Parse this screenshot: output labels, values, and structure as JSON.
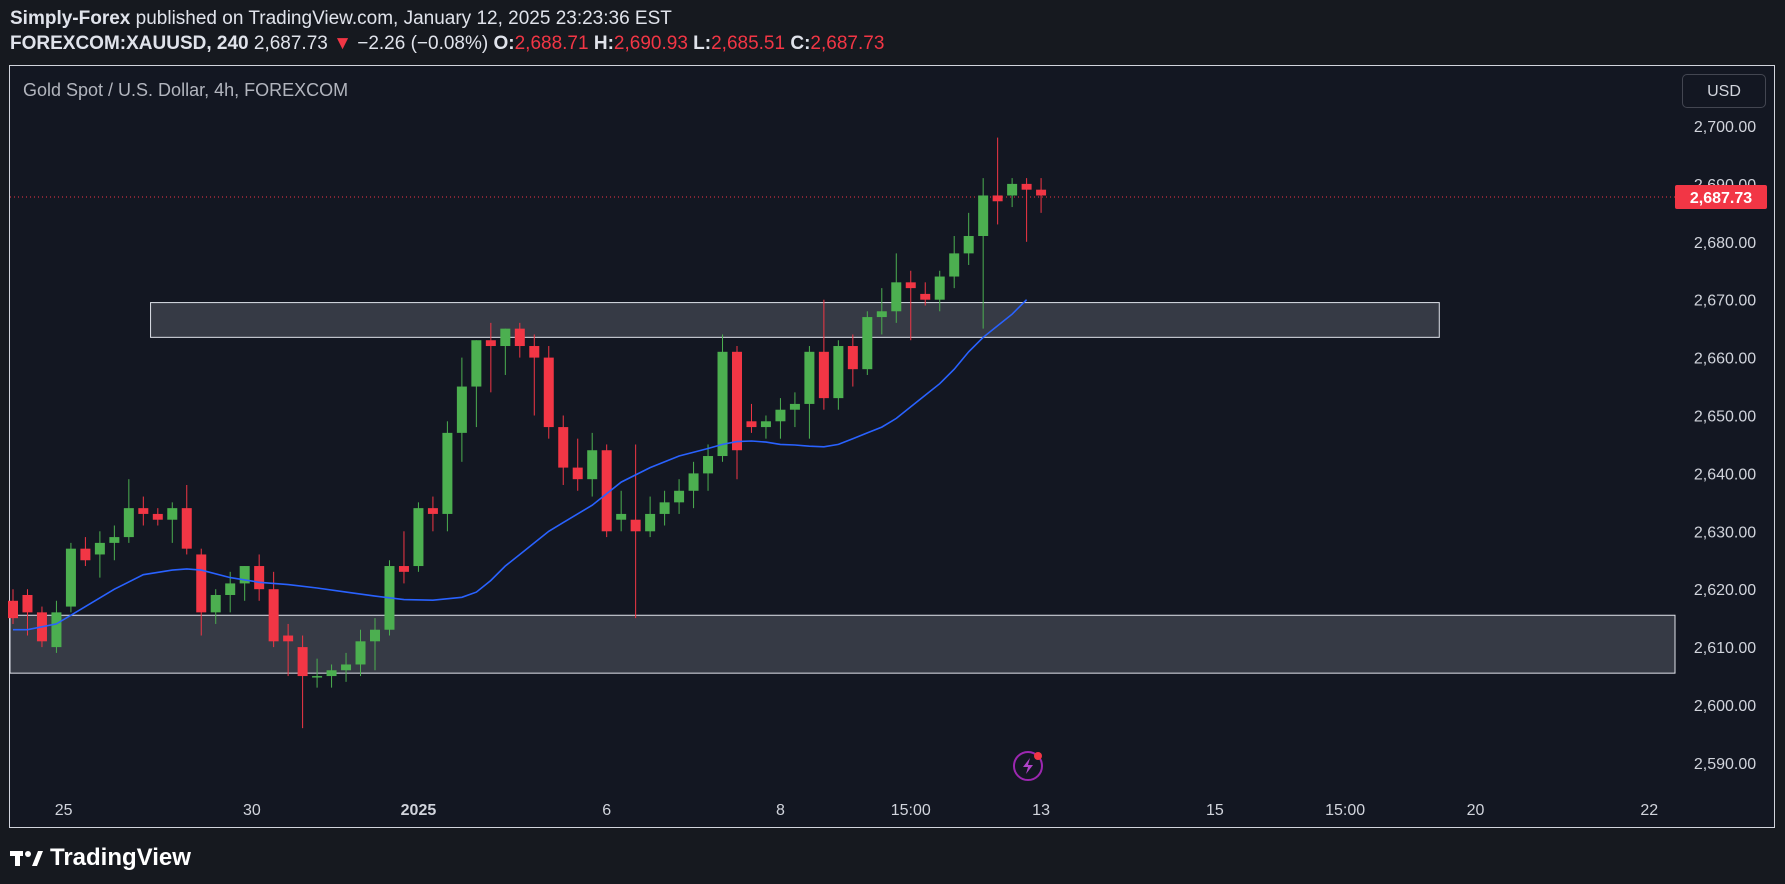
{
  "header": {
    "author": "Simply-Forex",
    "published_text": "published on TradingView.com, January 12, 2025 23:23:36 EST",
    "symbol": "FOREXCOM:XAUUSD, 240",
    "last": "2,687.73",
    "change": "−2.26 (−0.08%)",
    "o_label": "O:",
    "o_value": "2,688.71",
    "h_label": "H:",
    "h_value": "2,690.93",
    "l_label": "L:",
    "l_value": "2,685.51",
    "c_label": "C:",
    "c_value": "2,687.73"
  },
  "chart_title": "Gold Spot / U.S. Dollar, 4h, FOREXCOM",
  "currency_button": "USD",
  "footer": {
    "brand": "TradingView"
  },
  "colors": {
    "up": "#4caf50",
    "down": "#f23645",
    "ma": "#2962ff",
    "background": "#131722"
  },
  "chart_data": {
    "type": "candlestick",
    "title": "Gold Spot / U.S. Dollar, 4h, FOREXCOM",
    "ylim": [
      2581,
      2709
    ],
    "y_ticks": [
      2590,
      2600,
      2610,
      2620,
      2630,
      2640,
      2650,
      2660,
      2670,
      2680,
      2690,
      2700
    ],
    "y_tick_labels": [
      "2,590.00",
      "2,600.00",
      "2,610.00",
      "2,620.00",
      "2,630.00",
      "2,640.00",
      "2,650.00",
      "2,660.00",
      "2,670.00",
      "2,680.00",
      "2,690.00",
      "2,700.00"
    ],
    "x_labels": [
      {
        "label": "25",
        "index": 3.5
      },
      {
        "label": "30",
        "index": 16.5
      },
      {
        "label": "2025",
        "index": 28
      },
      {
        "label": "6",
        "index": 41
      },
      {
        "label": "8",
        "index": 53
      },
      {
        "label": "15:00",
        "index": 62
      },
      {
        "label": "13",
        "index": 71
      },
      {
        "label": "15",
        "index": 83
      },
      {
        "label": "15:00",
        "index": 92
      },
      {
        "label": "20",
        "index": 101
      },
      {
        "label": "22",
        "index": 113
      }
    ],
    "last_price_label": "2,687.73",
    "last_price": 2687.73,
    "zones": [
      {
        "name": "resistance-zone",
        "low": 2663.5,
        "high": 2669.5,
        "from_index": 9.5,
        "to_index": 98.5
      },
      {
        "name": "support-zone",
        "low": 2605.5,
        "high": 2615.5,
        "from_index": -0.5,
        "to_index": 115
      }
    ],
    "candles": [
      [
        2618,
        2620,
        2614,
        2615
      ],
      [
        2619,
        2620,
        2612,
        2616
      ],
      [
        2616,
        2617,
        2610,
        2611
      ],
      [
        2610,
        2618,
        2609,
        2616
      ],
      [
        2617,
        2628,
        2616,
        2627
      ],
      [
        2627,
        2629,
        2624,
        2625
      ],
      [
        2626,
        2630,
        2622,
        2628
      ],
      [
        2628,
        2631,
        2625,
        2629
      ],
      [
        2629,
        2639,
        2628,
        2634
      ],
      [
        2634,
        2636,
        2631,
        2633
      ],
      [
        2633,
        2634,
        2631,
        2632
      ],
      [
        2632,
        2635,
        2628,
        2634
      ],
      [
        2634,
        2638,
        2626,
        2627
      ],
      [
        2626,
        2627,
        2612,
        2616
      ],
      [
        2616,
        2620,
        2614,
        2619
      ],
      [
        2619,
        2623,
        2616,
        2621
      ],
      [
        2621,
        2624,
        2618,
        2624
      ],
      [
        2624,
        2626,
        2618,
        2620
      ],
      [
        2620,
        2623,
        2610,
        2611
      ],
      [
        2612,
        2614,
        2605,
        2611
      ],
      [
        2610,
        2612,
        2596,
        2605
      ],
      [
        2605,
        2608,
        2603,
        2605
      ],
      [
        2605,
        2607,
        2603,
        2606
      ],
      [
        2606,
        2609,
        2604,
        2607
      ],
      [
        2607,
        2613,
        2605,
        2611
      ],
      [
        2611,
        2615,
        2606,
        2613
      ],
      [
        2613,
        2625,
        2612,
        2624
      ],
      [
        2624,
        2630,
        2621,
        2623
      ],
      [
        2624,
        2635,
        2623,
        2634
      ],
      [
        2634,
        2636,
        2630,
        2633
      ],
      [
        2633,
        2649,
        2630,
        2647
      ],
      [
        2647,
        2660,
        2642,
        2655
      ],
      [
        2655,
        2663,
        2648,
        2663
      ],
      [
        2663,
        2666,
        2654,
        2662
      ],
      [
        2662,
        2665,
        2657,
        2665
      ],
      [
        2665,
        2666,
        2660,
        2662
      ],
      [
        2662,
        2664,
        2650,
        2660
      ],
      [
        2660,
        2662,
        2646,
        2648
      ],
      [
        2648,
        2650,
        2638,
        2641
      ],
      [
        2641,
        2646,
        2637,
        2639
      ],
      [
        2639,
        2647,
        2636,
        2644
      ],
      [
        2644,
        2645,
        2629,
        2630
      ],
      [
        2632,
        2637,
        2630,
        2633
      ],
      [
        2632,
        2645,
        2615,
        2630
      ],
      [
        2630,
        2636,
        2629,
        2633
      ],
      [
        2633,
        2637,
        2631,
        2635
      ],
      [
        2635,
        2639,
        2633,
        2637
      ],
      [
        2637,
        2642,
        2634,
        2640
      ],
      [
        2640,
        2645,
        2637,
        2643
      ],
      [
        2643,
        2664,
        2642,
        2661
      ],
      [
        2661,
        2662,
        2639,
        2644
      ],
      [
        2649,
        2652,
        2647,
        2648
      ],
      [
        2648,
        2650,
        2646,
        2649
      ],
      [
        2649,
        2653,
        2646,
        2651
      ],
      [
        2651,
        2654,
        2648,
        2652
      ],
      [
        2652,
        2662,
        2646,
        2661
      ],
      [
        2661,
        2670,
        2651,
        2653
      ],
      [
        2653,
        2663,
        2651,
        2662
      ],
      [
        2662,
        2664,
        2655,
        2658
      ],
      [
        2658,
        2668,
        2657,
        2667
      ],
      [
        2667,
        2672,
        2664,
        2668
      ],
      [
        2668,
        2678,
        2666,
        2673
      ],
      [
        2673,
        2675,
        2663,
        2672
      ],
      [
        2671,
        2673,
        2669,
        2670
      ],
      [
        2670,
        2675,
        2668,
        2674
      ],
      [
        2674,
        2681,
        2672,
        2678
      ],
      [
        2678,
        2685,
        2676,
        2681
      ],
      [
        2681,
        2691,
        2665,
        2688
      ],
      [
        2688,
        2698,
        2683,
        2687
      ],
      [
        2688,
        2691,
        2686,
        2690
      ],
      [
        2690,
        2691,
        2680,
        2689
      ],
      [
        2689,
        2691,
        2685,
        2688
      ]
    ],
    "ma": [
      [
        -1,
        2613
      ],
      [
        0,
        2613
      ],
      [
        1,
        2613
      ],
      [
        3,
        2614
      ],
      [
        5,
        2617
      ],
      [
        7,
        2620
      ],
      [
        9,
        2622.5
      ],
      [
        11,
        2623.3
      ],
      [
        12,
        2623.5
      ],
      [
        13,
        2623.3
      ],
      [
        15,
        2622
      ],
      [
        17,
        2621.2
      ],
      [
        19,
        2620.8
      ],
      [
        21,
        2620.2
      ],
      [
        23,
        2619.5
      ],
      [
        25,
        2618.8
      ],
      [
        27,
        2618.2
      ],
      [
        29,
        2618.1
      ],
      [
        31,
        2618.6
      ],
      [
        32,
        2619.5
      ],
      [
        33,
        2621.5
      ],
      [
        34,
        2624
      ],
      [
        35,
        2626
      ],
      [
        36,
        2628
      ],
      [
        37,
        2630
      ],
      [
        38,
        2631.5
      ],
      [
        40,
        2634.5
      ],
      [
        42,
        2638.5
      ],
      [
        44,
        2641
      ],
      [
        46,
        2643
      ],
      [
        48,
        2644.3
      ],
      [
        49,
        2645
      ],
      [
        50,
        2645.5
      ],
      [
        51,
        2645.6
      ],
      [
        52,
        2645.4
      ],
      [
        53,
        2645
      ],
      [
        54,
        2644.9
      ],
      [
        55,
        2644.7
      ],
      [
        56,
        2644.6
      ],
      [
        57,
        2645
      ],
      [
        58,
        2646
      ],
      [
        59,
        2647
      ],
      [
        60,
        2648
      ],
      [
        61,
        2649.5
      ],
      [
        62,
        2651.5
      ],
      [
        63,
        2653.5
      ],
      [
        64,
        2655.5
      ],
      [
        65,
        2658
      ],
      [
        66,
        2661
      ],
      [
        67,
        2663.5
      ],
      [
        68,
        2665.5
      ],
      [
        69,
        2667.5
      ],
      [
        70,
        2670
      ]
    ]
  }
}
